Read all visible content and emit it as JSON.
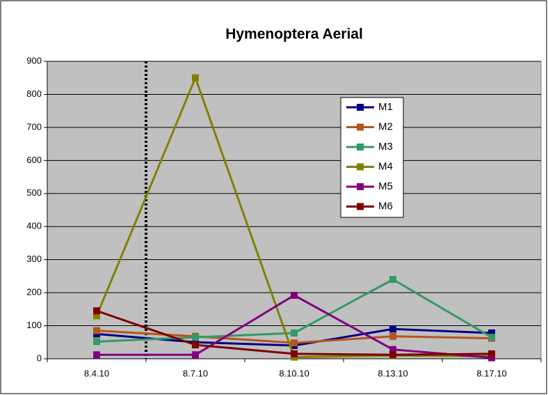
{
  "chart_data": {
    "type": "line",
    "title": "Hymenoptera Aerial",
    "categories": [
      "8.4.10",
      "8.7.10",
      "8.10.10",
      "8.13.10",
      "8.17.10"
    ],
    "series": [
      {
        "name": "M1",
        "color": "#000080",
        "values": [
          75,
          50,
          40,
          90,
          78
        ]
      },
      {
        "name": "M2",
        "color": "#b5541e",
        "values": [
          85,
          68,
          48,
          68,
          62
        ]
      },
      {
        "name": "M3",
        "color": "#339966",
        "values": [
          52,
          65,
          78,
          240,
          65
        ]
      },
      {
        "name": "M4",
        "color": "#808000",
        "values": [
          130,
          850,
          5,
          10,
          8
        ]
      },
      {
        "name": "M5",
        "color": "#800080",
        "values": [
          12,
          12,
          192,
          28,
          3
        ]
      },
      {
        "name": "M6",
        "color": "#800000",
        "values": [
          145,
          42,
          15,
          12,
          15
        ]
      }
    ],
    "ylim": [
      0,
      900
    ],
    "yticks": [
      0,
      100,
      200,
      300,
      400,
      500,
      600,
      700,
      800,
      900
    ],
    "grid": true
  }
}
